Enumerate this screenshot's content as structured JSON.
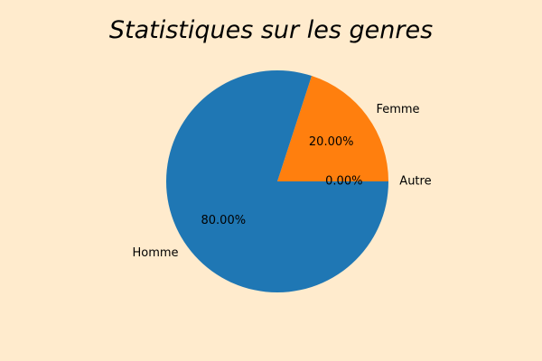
{
  "chart_data": {
    "type": "pie",
    "title": "Statistiques sur les genres",
    "categories": [
      "Autre",
      "Femme",
      "Homme"
    ],
    "values": [
      0,
      20,
      80
    ],
    "percent_labels": [
      "0.00%",
      "20.00%",
      "80.00%"
    ],
    "colors": [
      "#2ca02c",
      "#ff7f0e",
      "#1f77b4"
    ],
    "start_angle_deg": 0,
    "direction": "counterclockwise",
    "legend": "none"
  },
  "colors": {
    "background": "#ffebcd"
  }
}
